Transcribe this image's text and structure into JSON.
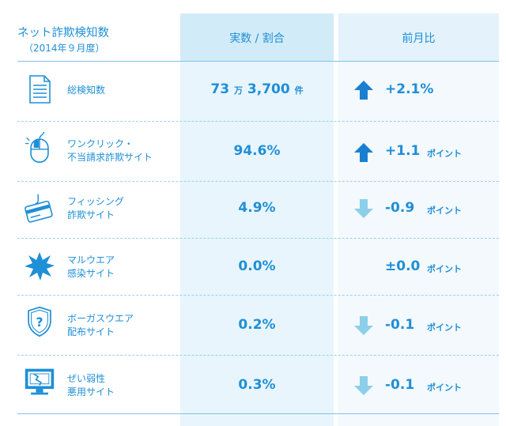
{
  "header": {
    "title": "ネット詐欺検知数",
    "subtitle": "（2014年９月度）",
    "col_actual": "実数 / 割合",
    "col_prev": "前月比"
  },
  "rows": [
    {
      "icon": "document-icon",
      "label_line1": "総検知数",
      "label_line2": "",
      "value_main": "73",
      "value_unit1": "万",
      "value_rest": "3,700",
      "value_unit2": "件",
      "trend": "up",
      "change": "+2.1%",
      "change_unit": ""
    },
    {
      "icon": "mouse-icon",
      "label_line1": "ワンクリック・",
      "label_line2": "不当請求詐欺サイト",
      "value": "94.6%",
      "trend": "up",
      "change": "+1.1",
      "change_unit": "ポイント"
    },
    {
      "icon": "credit-card-hook-icon",
      "label_line1": "フィッシング",
      "label_line2": "詐欺サイト",
      "value": "4.9%",
      "trend": "down",
      "change": "-0.9",
      "change_unit": "ポイント"
    },
    {
      "icon": "burst-icon",
      "label_line1": "マルウエア",
      "label_line2": "感染サイト",
      "value": "0.0%",
      "trend": "none",
      "change": "±0.0",
      "change_unit": "ポイント"
    },
    {
      "icon": "shield-question-icon",
      "label_line1": "ボーガスウエア",
      "label_line2": "配布サイト",
      "value": "0.2%",
      "trend": "down",
      "change": "-0.1",
      "change_unit": "ポイント"
    },
    {
      "icon": "broken-monitor-icon",
      "label_line1": "ぜい弱性",
      "label_line2": "悪用サイト",
      "value": "0.3%",
      "trend": "down",
      "change": "-0.1",
      "change_unit": "ポイント"
    }
  ],
  "colors": {
    "accent": "#1f8fd6",
    "up": "#1a7fd0",
    "down": "#8ccfe8"
  }
}
